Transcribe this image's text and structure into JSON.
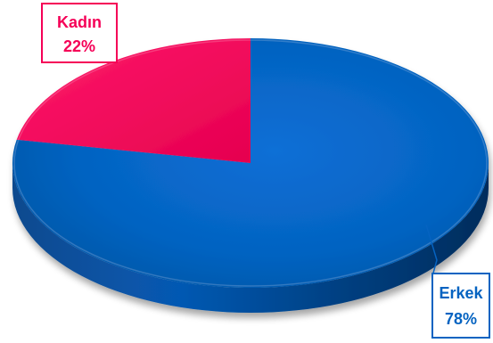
{
  "chart_data": {
    "type": "pie",
    "style": "3d",
    "title": "",
    "slices": [
      {
        "label": "Erkek",
        "value": 78,
        "value_label": "78%",
        "color": "#0563C1"
      },
      {
        "label": "Kadın",
        "value": 22,
        "value_label": "22%",
        "color": "#F50057"
      }
    ],
    "legend": "none",
    "data_labels": "callout"
  }
}
